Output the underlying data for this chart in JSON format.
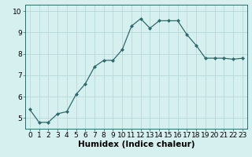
{
  "x": [
    0,
    1,
    2,
    3,
    4,
    5,
    6,
    7,
    8,
    9,
    10,
    11,
    12,
    13,
    14,
    15,
    16,
    17,
    18,
    19,
    20,
    21,
    22,
    23
  ],
  "y": [
    5.4,
    4.8,
    4.8,
    5.2,
    5.3,
    6.1,
    6.6,
    7.4,
    7.7,
    7.7,
    8.2,
    9.3,
    9.65,
    9.2,
    9.55,
    9.55,
    9.55,
    8.9,
    8.4,
    7.8,
    7.8,
    7.8,
    7.75,
    7.8
  ],
  "line_color": "#2e6b6b",
  "marker": "D",
  "marker_size": 2.0,
  "bg_color": "#d6f0f0",
  "grid_color": "#b8d8d8",
  "xlabel": "Humidex (Indice chaleur)",
  "ylim": [
    4.5,
    10.3
  ],
  "xlim": [
    -0.5,
    23.5
  ],
  "yticks": [
    5,
    6,
    7,
    8,
    9,
    10
  ],
  "xticks": [
    0,
    1,
    2,
    3,
    4,
    5,
    6,
    7,
    8,
    9,
    10,
    11,
    12,
    13,
    14,
    15,
    16,
    17,
    18,
    19,
    20,
    21,
    22,
    23
  ],
  "xlabel_fontsize": 7.5,
  "tick_fontsize": 6.5
}
